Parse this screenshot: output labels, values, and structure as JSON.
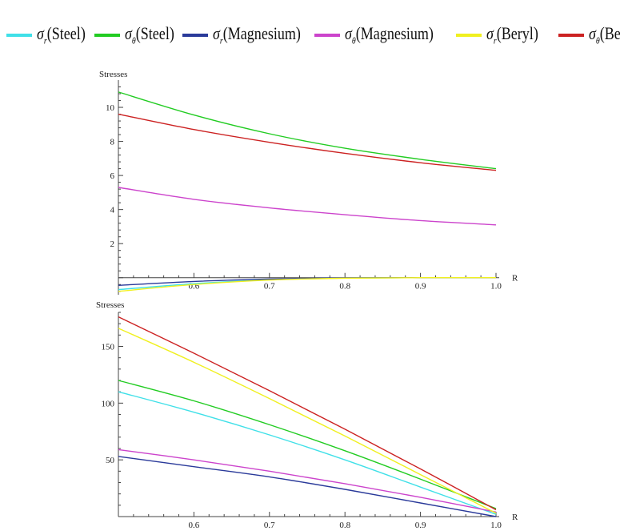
{
  "legend": [
    {
      "symbol": "σ",
      "sub": "r",
      "text": "(Steel)",
      "color": "#40e0e8"
    },
    {
      "symbol": "σ",
      "sub": "θ",
      "text": "(Steel)",
      "color": "#22cc22"
    },
    {
      "symbol": "σ",
      "sub": "r",
      "text": "(Magnesium)",
      "color": "#2a3a9a"
    },
    {
      "symbol": "σ",
      "sub": "θ",
      "text": "(Magnesium)",
      "color": "#cc44cc"
    },
    {
      "symbol": "σ",
      "sub": "r",
      "text": "(Beryl)",
      "color": "#f0f020"
    },
    {
      "symbol": "σ",
      "sub": "θ",
      "text": "(Beryl)",
      "color": "#cc2222"
    }
  ],
  "chart_data": [
    {
      "type": "line",
      "ylabel": "Stresses",
      "xlabel": "R",
      "xlim": [
        0.5,
        1.0
      ],
      "ylim": [
        -1.0,
        11.6
      ],
      "xticks": [
        0.6,
        0.7,
        0.8,
        0.9,
        1.0
      ],
      "yticks": [
        2,
        4,
        6,
        8,
        10
      ],
      "x": [
        0.5,
        0.6,
        0.7,
        0.8,
        0.9,
        1.0
      ],
      "series": [
        {
          "name": "σr (Steel)",
          "color": "#40e0e8",
          "values": [
            -0.7,
            -0.35,
            -0.12,
            -0.02,
            0.0,
            0.0
          ]
        },
        {
          "name": "σθ (Steel)",
          "color": "#22cc22",
          "values": [
            10.9,
            9.55,
            8.45,
            7.6,
            6.95,
            6.4
          ]
        },
        {
          "name": "σr (Magnesium)",
          "color": "#2a3a9a",
          "values": [
            -0.45,
            -0.22,
            -0.08,
            -0.01,
            0.0,
            0.0
          ]
        },
        {
          "name": "σθ (Magnesium)",
          "color": "#cc44cc",
          "values": [
            5.3,
            4.6,
            4.1,
            3.7,
            3.35,
            3.1
          ]
        },
        {
          "name": "σr (Beryl)",
          "color": "#f0f020",
          "values": [
            -0.8,
            -0.4,
            -0.14,
            -0.03,
            0.0,
            0.0
          ]
        },
        {
          "name": "σθ (Beryl)",
          "color": "#cc2222",
          "values": [
            9.6,
            8.7,
            7.95,
            7.3,
            6.75,
            6.3
          ]
        }
      ]
    },
    {
      "type": "line",
      "ylabel": "Stresses",
      "xlabel": "R",
      "xlim": [
        0.5,
        1.0
      ],
      "ylim": [
        0,
        180
      ],
      "xticks": [
        0.6,
        0.7,
        0.8,
        0.9,
        1.0
      ],
      "yticks": [
        50,
        100,
        150
      ],
      "x": [
        0.5,
        0.6,
        0.7,
        0.8,
        0.9,
        1.0
      ],
      "series": [
        {
          "name": "σr (Steel)",
          "color": "#40e0e8",
          "values": [
            110,
            92,
            72,
            50,
            26,
            2
          ]
        },
        {
          "name": "σθ (Steel)",
          "color": "#22cc22",
          "values": [
            120,
            102,
            81,
            58,
            33,
            7
          ]
        },
        {
          "name": "σr (Magnesium)",
          "color": "#2a3a9a",
          "values": [
            53,
            44,
            35,
            24,
            12,
            0
          ]
        },
        {
          "name": "σθ (Magnesium)",
          "color": "#cc44cc",
          "values": [
            59,
            50,
            40,
            29,
            17,
            4
          ]
        },
        {
          "name": "σr (Beryl)",
          "color": "#f0f020",
          "values": [
            166,
            136,
            104,
            71,
            37,
            3
          ]
        },
        {
          "name": "σθ (Beryl)",
          "color": "#cc2222",
          "values": [
            176,
            144,
            111,
            77,
            42,
            6
          ]
        }
      ]
    }
  ]
}
